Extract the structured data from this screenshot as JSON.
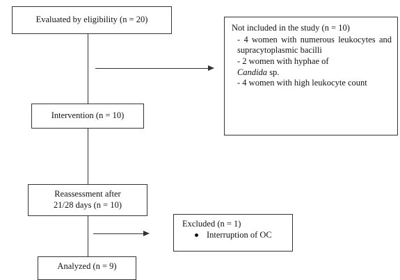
{
  "flow": {
    "eligibility": "Evaluated by eligibility (n = 20)",
    "not_included": {
      "title": "Not included in the study (n = 10)",
      "items": [
        "- 4 women with numerous leukocytes and supracytoplasmic bacilli",
        "- 2 women with hyphae of",
        "- 4 women with high leukocyte count"
      ],
      "candida_italic": "Candida",
      "candida_suffix": " sp."
    },
    "intervention": "Intervention (n = 10)",
    "reassessment_line1": "Reassessment after",
    "reassessment_line2": "21/28 days (n = 10)",
    "excluded": {
      "title": "Excluded (n = 1)",
      "item": "Interruption of OC"
    },
    "analyzed": "Analyzed (n = 9)"
  }
}
